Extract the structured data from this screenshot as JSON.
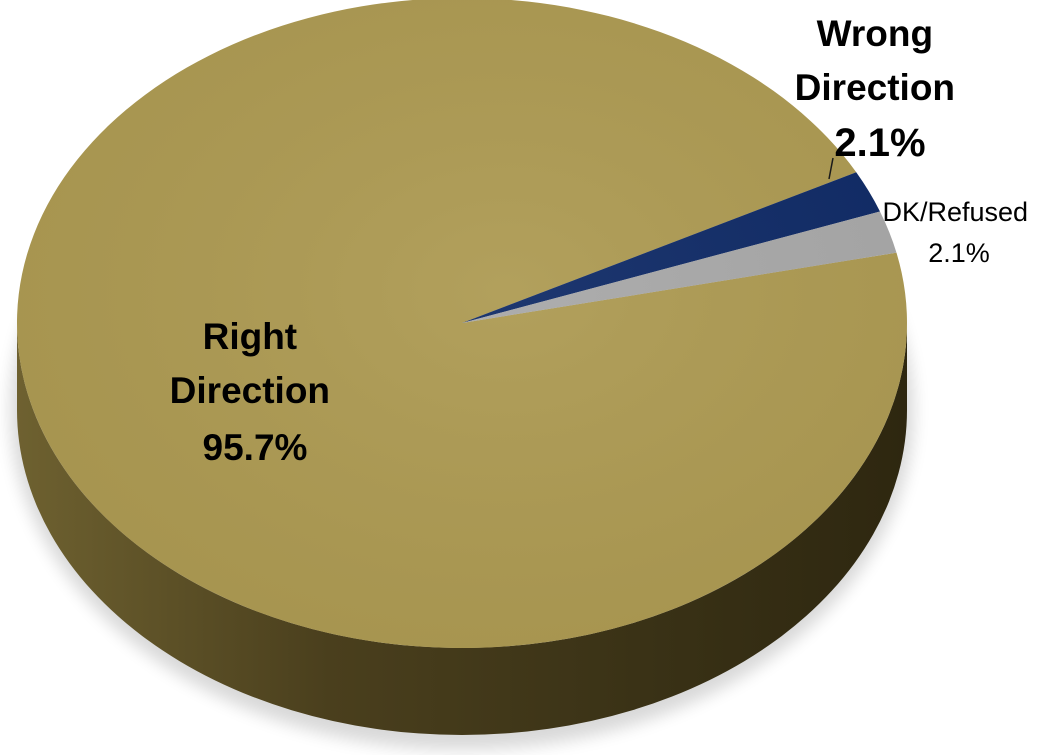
{
  "chart_data": {
    "type": "pie",
    "style": "3d",
    "slices": [
      {
        "name": "Right Direction",
        "label_lines": [
          "Right",
          "Direction"
        ],
        "value": 95.7,
        "value_label": "95.7%",
        "color": "#AD9A52"
      },
      {
        "name": "Wrong Direction",
        "label_lines": [
          "Wrong",
          "Direction"
        ],
        "value": 2.1,
        "value_label": "2.1%",
        "color": "#0F2A66"
      },
      {
        "name": "DK/Refused",
        "label_lines": [
          "DK/Refused"
        ],
        "value": 2.1,
        "value_label": "2.1%",
        "color": "#A8A8A8"
      }
    ],
    "legend": "none",
    "side_color": "#5A4E24"
  }
}
